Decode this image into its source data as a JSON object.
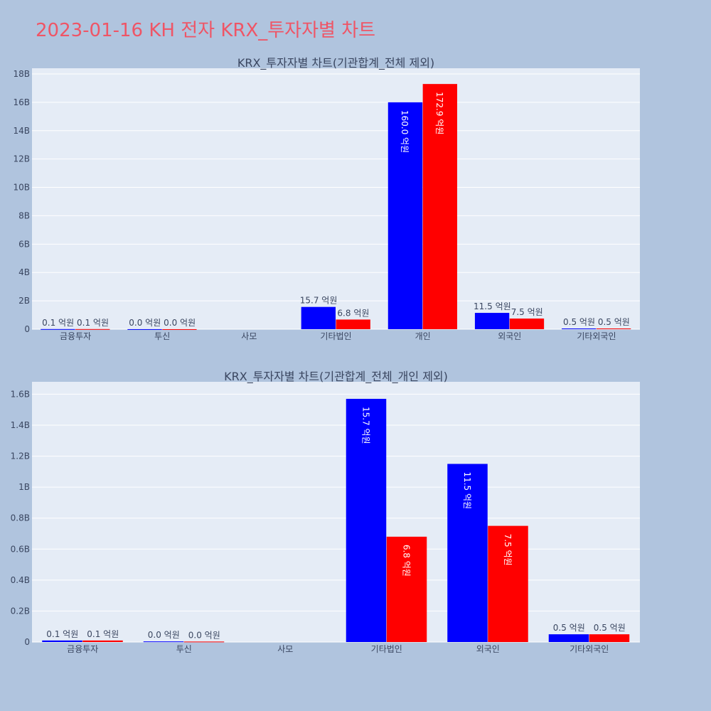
{
  "title": "2023-01-16 KH 전자 KRX_투자자별 차트",
  "colors": {
    "background": "#b0c4de",
    "plot_bg": "#e5ecf6",
    "buy": "#0000ff",
    "sell": "#ff0000",
    "title": "#ef5566"
  },
  "chart_data": [
    {
      "type": "bar",
      "title": "KRX_투자자별 차트(기관합계_전체 제외)",
      "categories": [
        "금융투자",
        "투신",
        "사모",
        "기타법인",
        "개인",
        "외국인",
        "기타외국인"
      ],
      "series": [
        {
          "color": "#0000ff",
          "values": [
            10000000,
            4000000,
            0,
            1570000000,
            16000000000,
            1150000000,
            50000000
          ],
          "labels": [
            "0.1 억원",
            "0.0 억원",
            "",
            "15.7 억원",
            "160.0 억원",
            "11.5 억원",
            "0.5 억원"
          ]
        },
        {
          "color": "#ff0000",
          "values": [
            10000000,
            3000000,
            0,
            680000000,
            17290000000,
            750000000,
            50000000
          ],
          "labels": [
            "0.1 억원",
            "0.0 억원",
            "",
            "6.8 억원",
            "172.9 억원",
            "7.5 억원",
            "0.5 억원"
          ]
        }
      ],
      "ylim": [
        0,
        18400000000
      ],
      "yticks": [
        0,
        2000000000,
        4000000000,
        6000000000,
        8000000000,
        10000000000,
        12000000000,
        14000000000,
        16000000000,
        18000000000
      ],
      "ytick_labels": [
        "0",
        "2B",
        "4B",
        "6B",
        "8B",
        "10B",
        "12B",
        "14B",
        "16B",
        "18B"
      ],
      "grid": true
    },
    {
      "type": "bar",
      "title": "KRX_투자자별 차트(기관합계_전체_개인 제외)",
      "categories": [
        "금융투자",
        "투신",
        "사모",
        "기타법인",
        "외국인",
        "기타외국인"
      ],
      "series": [
        {
          "color": "#0000ff",
          "values": [
            10000000,
            4000000,
            0,
            1570000000,
            1150000000,
            50000000
          ],
          "labels": [
            "0.1 억원",
            "0.0 억원",
            "",
            "15.7 억원",
            "11.5 억원",
            "0.5 억원"
          ]
        },
        {
          "color": "#ff0000",
          "values": [
            10000000,
            3000000,
            0,
            680000000,
            750000000,
            50000000
          ],
          "labels": [
            "0.1 억원",
            "0.0 억원",
            "",
            "6.8 억원",
            "7.5 억원",
            "0.5 억원"
          ]
        }
      ],
      "ylim": [
        0,
        1680000000
      ],
      "yticks": [
        0,
        200000000,
        400000000,
        600000000,
        800000000,
        1000000000,
        1200000000,
        1400000000,
        1600000000
      ],
      "ytick_labels": [
        "0",
        "0.2B",
        "0.4B",
        "0.6B",
        "0.8B",
        "1B",
        "1.2B",
        "1.4B",
        "1.6B"
      ],
      "grid": true
    }
  ]
}
